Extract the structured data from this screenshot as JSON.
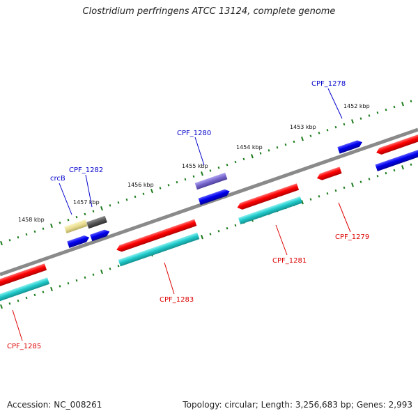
{
  "title": "Clostridium perfringens ATCC 13124, complete genome",
  "footer": {
    "accession": "Accession: NC_008261",
    "summary": "Topology: circular; Length: 3,256,683 bp; Genes: 2,993"
  },
  "colors": {
    "backbone": "#8a8a8a",
    "cds_forward": "#0000ee",
    "cds_reverse": "#ff0000",
    "rna_reverse": "#22cccc",
    "rrna_like": "#e8dd90",
    "misc_gray": "#555555",
    "purple": "#7766cc",
    "tick": "#1a7a1a",
    "label_forward": "#0000cc",
    "label_reverse": "#dd0000"
  },
  "tick_labels": [
    "1452 kbp",
    "1453 kbp",
    "1454 kbp",
    "1455 kbp",
    "1456 kbp",
    "1457 kbp",
    "1458 kbp"
  ],
  "gene_labels_forward": [
    "CPF_1278",
    "CPF_1280",
    "CPF_1282",
    "crcB"
  ],
  "gene_labels_reverse": [
    "CPF_1279",
    "CPF_1281",
    "CPF_1283",
    "CPF_1285"
  ]
}
